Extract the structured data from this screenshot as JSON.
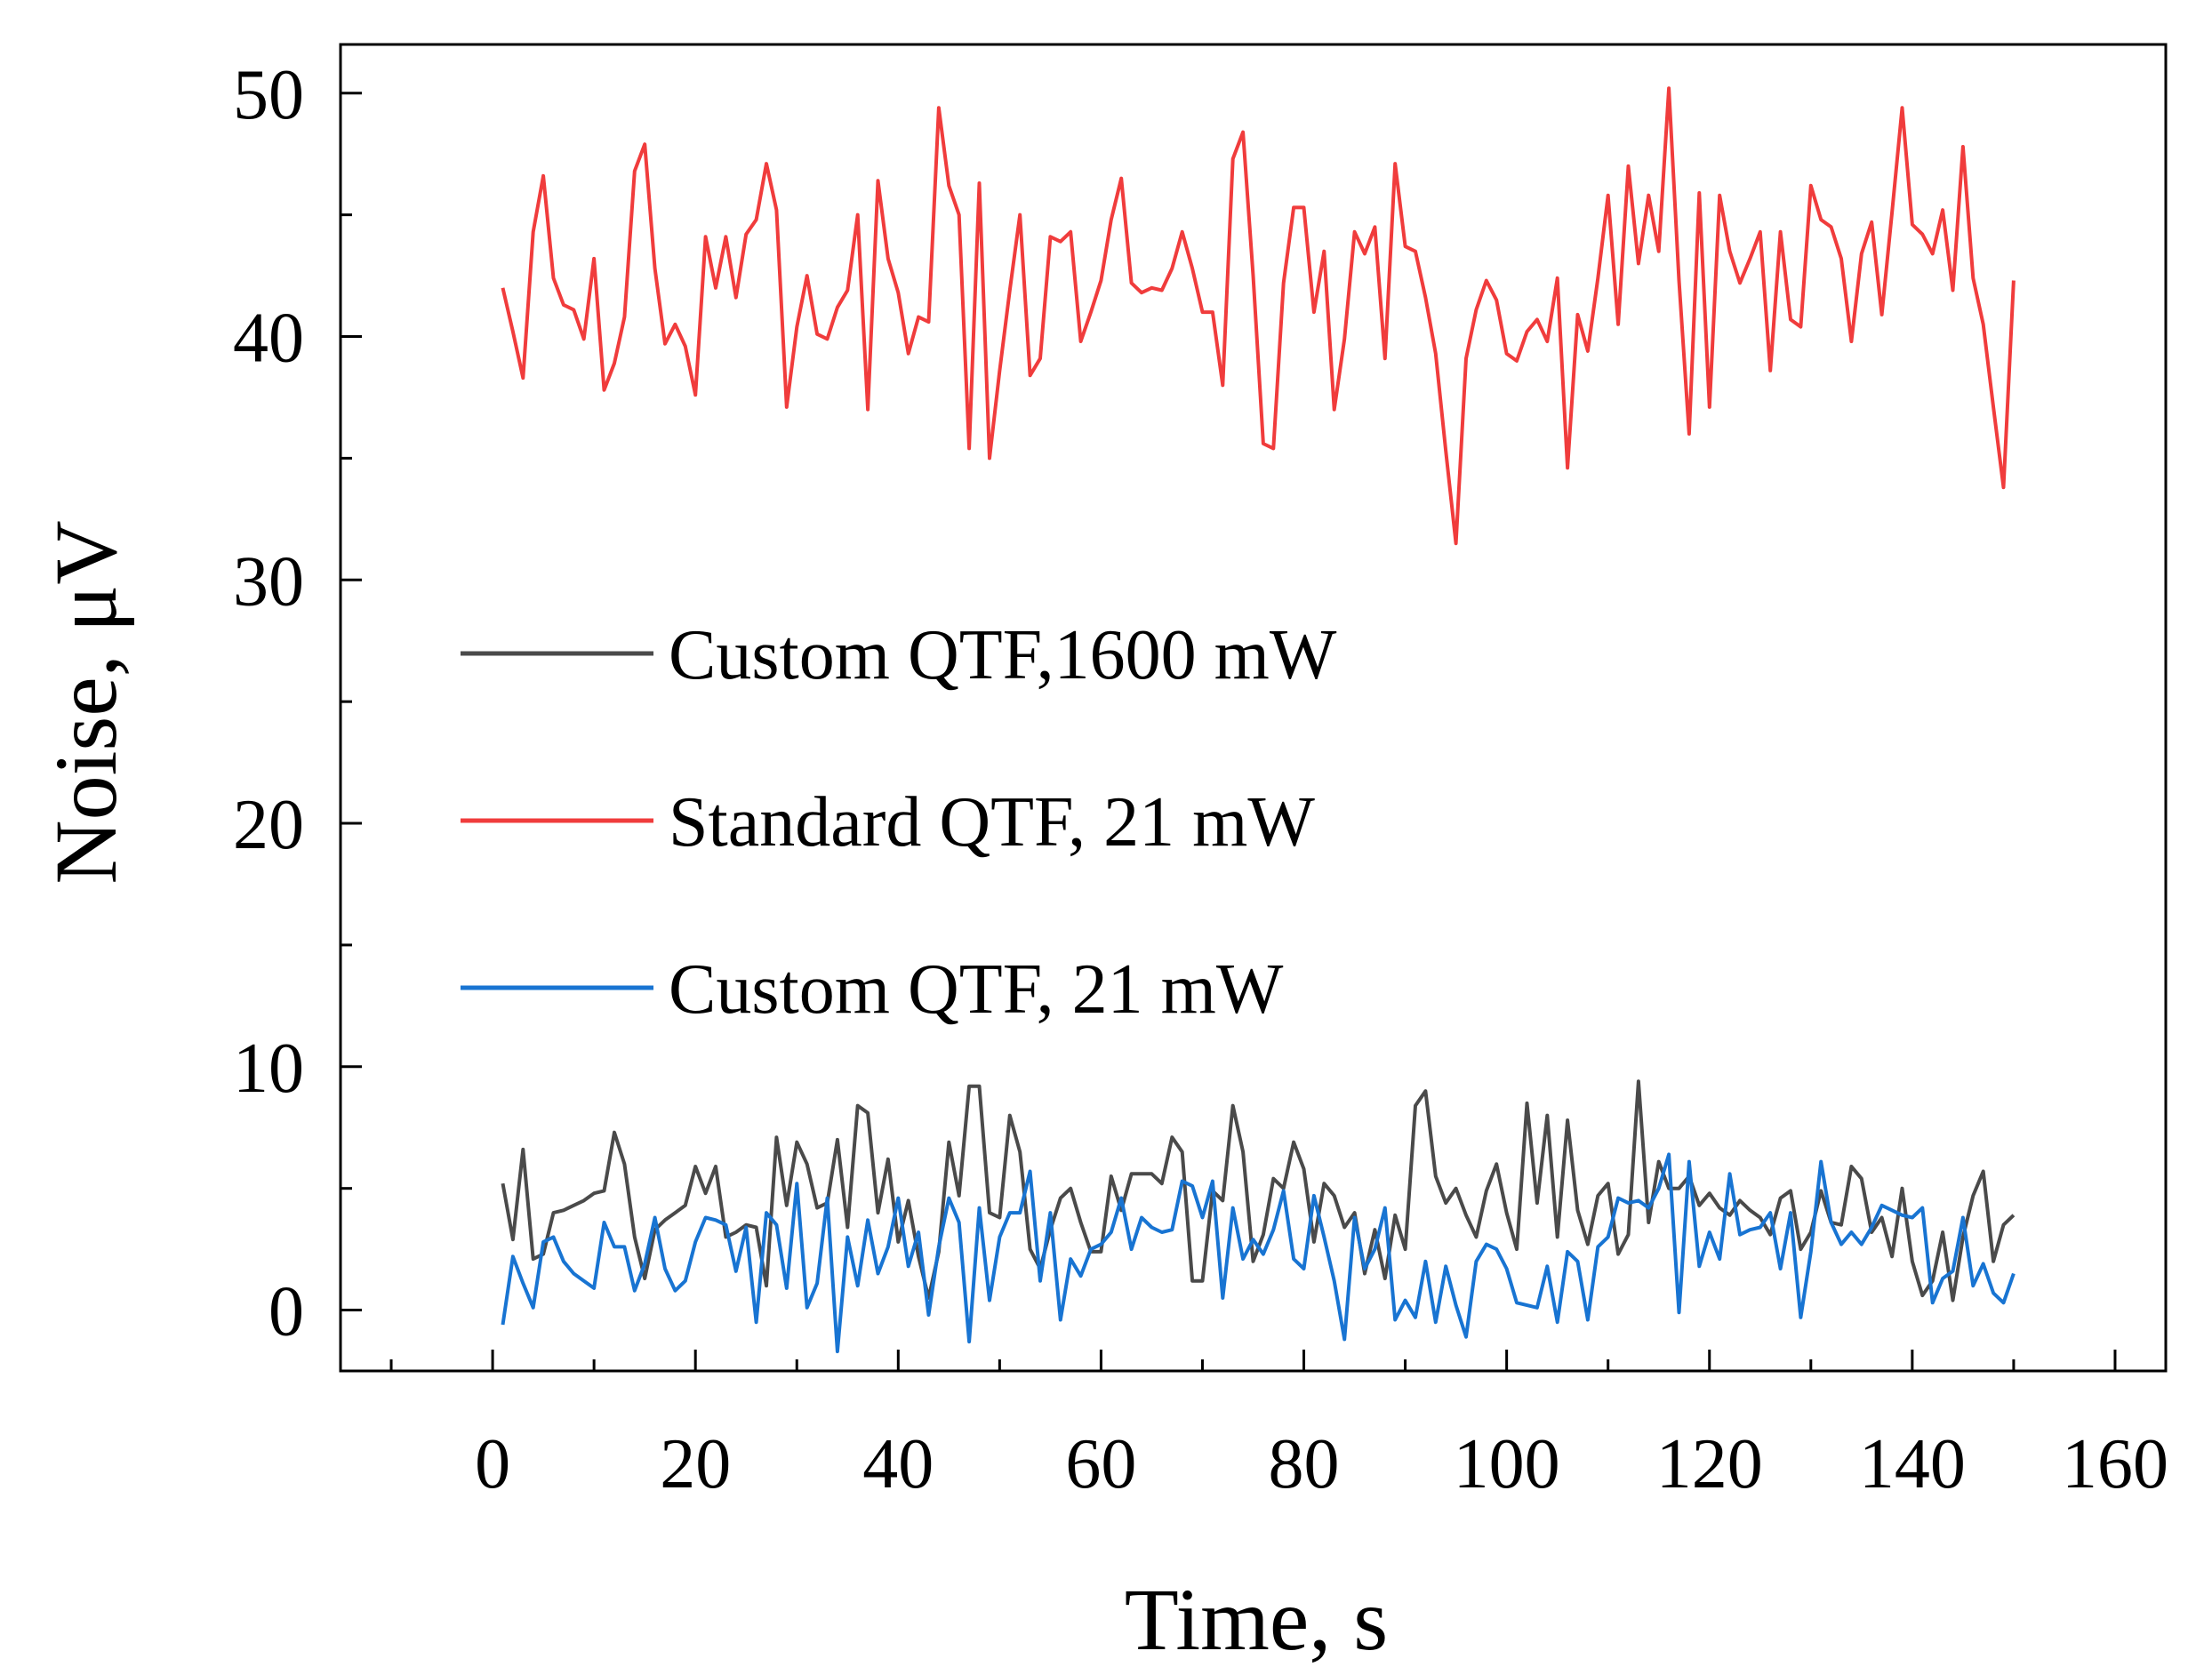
{
  "chart_data": {
    "type": "line",
    "title": "",
    "xlabel": "Time, s",
    "ylabel": "Noise, μV",
    "xlim": [
      -15,
      165
    ],
    "ylim": [
      -2.5,
      52
    ],
    "xticks": [
      0,
      20,
      40,
      60,
      80,
      100,
      120,
      140,
      160
    ],
    "yticks": [
      0,
      10,
      20,
      30,
      40,
      50
    ],
    "grid": false,
    "legend_position": "center-left",
    "x_start": 1,
    "x_step": 1,
    "series": [
      {
        "name": "Custom QTF,1600 mW",
        "color": "#4a4a4a",
        "values": [
          5.2,
          2.9,
          6.6,
          2.1,
          2.3,
          4.0,
          4.1,
          4.3,
          4.5,
          4.8,
          4.9,
          7.3,
          6.0,
          3.0,
          1.3,
          3.3,
          3.7,
          4.0,
          4.3,
          5.9,
          4.8,
          5.9,
          3.0,
          3.2,
          3.5,
          3.4,
          1.0,
          7.1,
          4.3,
          6.9,
          6.0,
          4.2,
          4.4,
          7.0,
          3.4,
          8.4,
          8.1,
          4.0,
          6.2,
          2.8,
          4.5,
          2.2,
          0.5,
          2.4,
          6.9,
          4.7,
          9.2,
          9.2,
          4.0,
          3.8,
          8.0,
          6.5,
          2.5,
          1.7,
          3.3,
          4.6,
          5.0,
          3.6,
          2.4,
          2.4,
          5.5,
          4.1,
          5.6,
          5.6,
          5.6,
          5.2,
          7.1,
          6.5,
          1.2,
          1.2,
          4.9,
          4.5,
          8.4,
          6.5,
          2.0,
          3.1,
          5.4,
          5.0,
          6.9,
          5.8,
          2.8,
          5.2,
          4.7,
          3.4,
          4.0,
          1.5,
          3.3,
          1.3,
          3.9,
          2.5,
          8.4,
          9.0,
          5.5,
          4.4,
          5.0,
          3.9,
          3.0,
          4.9,
          6.0,
          4.0,
          2.5,
          8.5,
          4.4,
          8.0,
          3.0,
          7.8,
          4.1,
          2.7,
          4.7,
          5.2,
          2.3,
          3.1,
          9.4,
          3.6,
          6.1,
          5.0,
          5.0,
          5.5,
          4.3,
          4.8,
          4.2,
          3.9,
          4.5,
          4.1,
          3.8,
          3.1,
          4.6,
          4.9,
          2.5,
          3.2,
          4.9,
          3.6,
          3.5,
          5.9,
          5.4,
          3.2,
          3.8,
          2.2,
          5.0,
          2.0,
          0.6,
          1.2,
          3.2,
          0.4,
          3.0,
          4.7,
          5.7,
          2.0,
          3.5,
          3.9
        ]
      },
      {
        "name": "Standard QTF, 21 mW",
        "color": "#f03c3c",
        "values": [
          42.0,
          40.2,
          38.3,
          44.3,
          46.6,
          42.4,
          41.3,
          41.1,
          39.9,
          43.2,
          37.8,
          38.9,
          40.8,
          46.8,
          47.9,
          42.8,
          39.7,
          40.5,
          39.6,
          37.6,
          44.1,
          42.0,
          44.1,
          41.6,
          44.2,
          44.8,
          47.1,
          45.2,
          37.1,
          40.4,
          42.5,
          40.1,
          39.9,
          41.2,
          41.9,
          45.0,
          37.0,
          46.4,
          43.2,
          41.8,
          39.3,
          40.8,
          40.6,
          49.4,
          46.2,
          45.0,
          35.4,
          46.3,
          35.0,
          38.6,
          41.9,
          45.0,
          38.4,
          39.1,
          44.1,
          43.9,
          44.3,
          39.8,
          41.0,
          42.3,
          44.8,
          46.5,
          42.2,
          41.8,
          42.0,
          41.9,
          42.8,
          44.3,
          42.8,
          41.0,
          41.0,
          38.0,
          47.3,
          48.4,
          42.5,
          35.6,
          35.4,
          42.2,
          45.3,
          45.3,
          41.0,
          43.5,
          37.0,
          39.9,
          44.3,
          43.4,
          44.5,
          39.1,
          47.1,
          43.7,
          43.5,
          41.6,
          39.3,
          35.3,
          31.5,
          39.1,
          41.1,
          42.3,
          41.5,
          39.3,
          39.0,
          40.2,
          40.7,
          39.8,
          42.4,
          34.6,
          40.9,
          39.4,
          42.4,
          45.8,
          40.5,
          47.0,
          43.0,
          45.8,
          43.5,
          50.2,
          42.3,
          36.0,
          45.9,
          37.1,
          45.8,
          43.5,
          42.2,
          43.2,
          44.3,
          38.6,
          44.3,
          40.7,
          40.4,
          46.2,
          44.8,
          44.5,
          43.2,
          39.8,
          43.4,
          44.7,
          40.9,
          45.1,
          49.4,
          44.6,
          44.2,
          43.4,
          45.2,
          41.9,
          47.8,
          42.4,
          40.5,
          37.1,
          33.8,
          42.3
        ]
      },
      {
        "name": "Custom QTF, 21 mW",
        "color": "#1874d2",
        "values": [
          -0.6,
          2.2,
          1.1,
          0.1,
          2.8,
          3.0,
          2.0,
          1.5,
          1.2,
          0.9,
          3.6,
          2.6,
          2.6,
          0.8,
          1.9,
          3.8,
          1.7,
          0.8,
          1.2,
          2.8,
          3.8,
          3.7,
          3.5,
          1.6,
          3.4,
          -0.5,
          4.0,
          3.5,
          0.9,
          5.2,
          0.1,
          1.1,
          4.6,
          -1.7,
          3.0,
          1.0,
          3.7,
          1.5,
          2.6,
          4.6,
          1.8,
          3.2,
          -0.2,
          2.6,
          4.6,
          3.6,
          -1.3,
          4.2,
          0.4,
          3.0,
          4.0,
          4.0,
          5.7,
          1.2,
          4.0,
          -0.4,
          2.1,
          1.4,
          2.5,
          2.7,
          3.2,
          4.6,
          2.5,
          3.8,
          3.4,
          3.2,
          3.3,
          5.3,
          5.1,
          3.8,
          5.3,
          0.5,
          4.2,
          2.1,
          2.9,
          2.3,
          3.3,
          4.9,
          2.1,
          1.7,
          4.7,
          3.0,
          1.2,
          -1.2,
          3.8,
          1.7,
          2.5,
          4.2,
          -0.4,
          0.4,
          -0.3,
          2.0,
          -0.5,
          1.8,
          0.2,
          -1.1,
          2.0,
          2.7,
          2.5,
          1.7,
          0.3,
          0.2,
          0.1,
          1.8,
          -0.5,
          2.4,
          2.0,
          -0.4,
          2.6,
          3.0,
          4.6,
          4.4,
          4.5,
          4.2,
          5.0,
          6.4,
          -0.1,
          6.1,
          1.8,
          3.2,
          2.1,
          5.6,
          3.1,
          3.3,
          3.4,
          4.0,
          1.7,
          4.0,
          -0.3,
          2.4,
          6.1,
          3.6,
          2.7,
          3.2,
          2.7,
          3.4,
          4.3,
          4.1,
          3.9,
          3.8,
          4.2,
          0.3,
          1.3,
          1.6,
          3.8,
          1.0,
          1.9,
          0.7,
          0.3,
          1.5
        ]
      }
    ]
  }
}
